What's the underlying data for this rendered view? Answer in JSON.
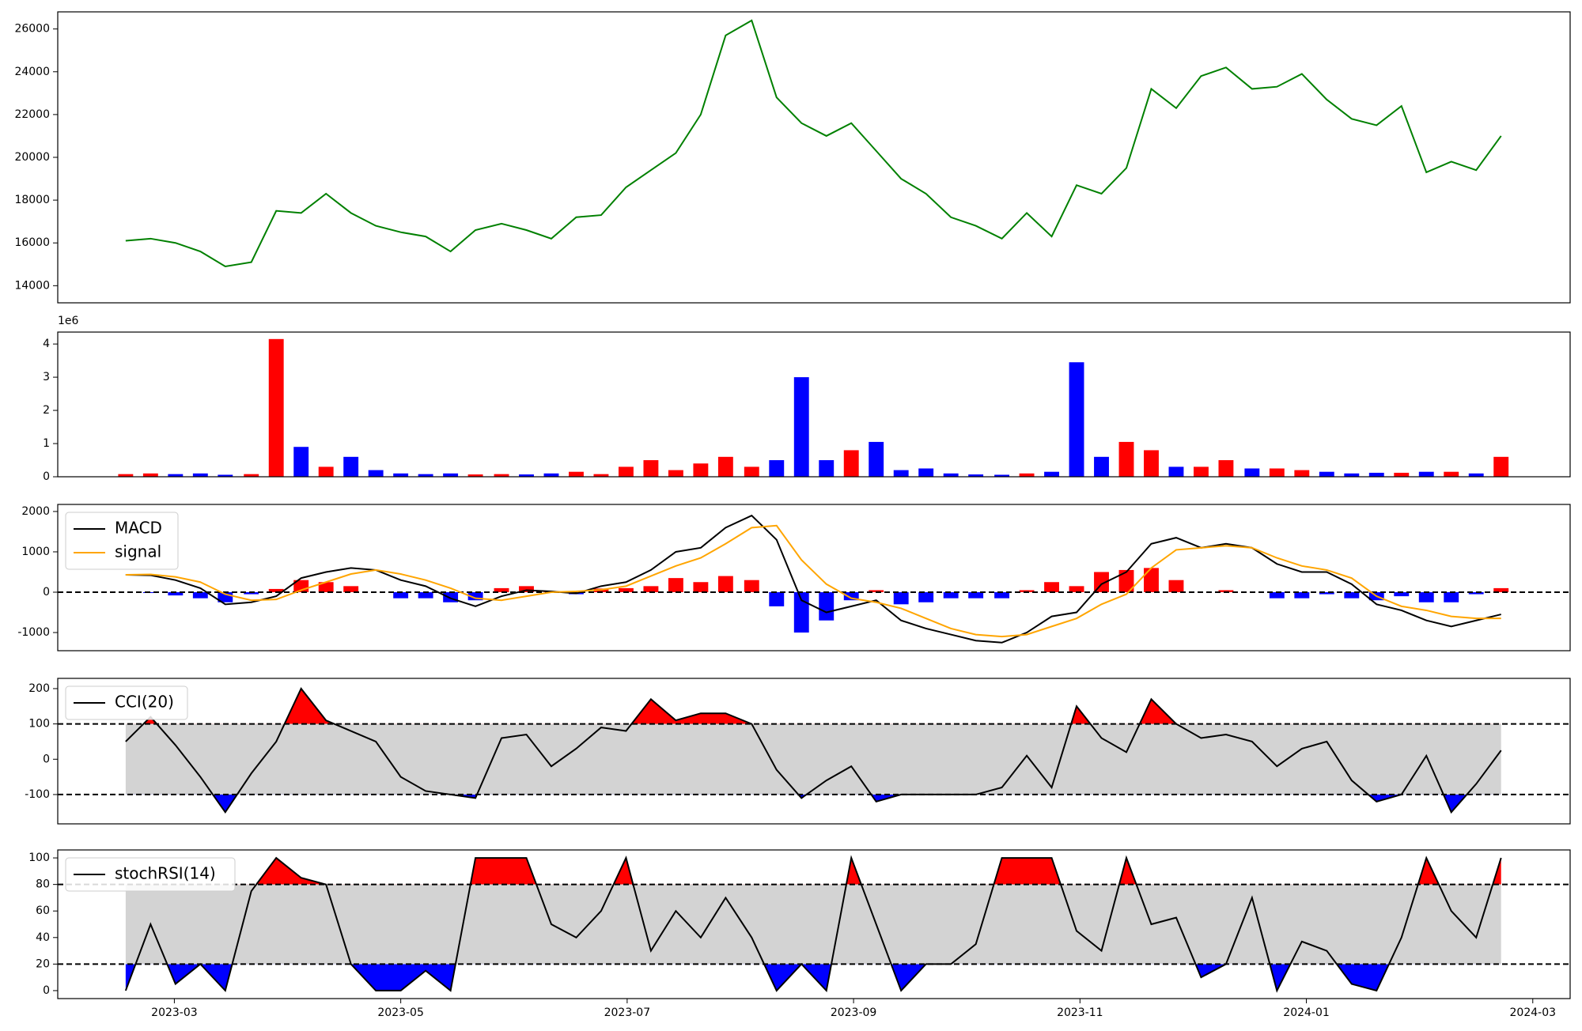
{
  "chart_data": [
    {
      "type": "line",
      "x": [
        2.57,
        2.79,
        3.01,
        3.23,
        3.45,
        3.68,
        3.9,
        4.12,
        4.34,
        4.56,
        4.78,
        5.0,
        5.22,
        5.44,
        5.66,
        5.89,
        6.11,
        6.33,
        6.55,
        6.77,
        6.99,
        7.21,
        7.43,
        7.65,
        7.87,
        8.1,
        8.32,
        8.54,
        8.76,
        8.98,
        9.2,
        9.42,
        9.64,
        9.86,
        10.08,
        10.31,
        10.53,
        10.75,
        10.97,
        11.19,
        11.41,
        11.63,
        11.85,
        12.07,
        12.29,
        12.52,
        12.74,
        12.96,
        13.18,
        13.4,
        13.62,
        13.84,
        14.06,
        14.28,
        14.5,
        14.72
      ],
      "xlim": [
        1.97,
        15.33
      ],
      "ylim": [
        13200,
        26800
      ],
      "yticks": [
        14000,
        16000,
        18000,
        20000,
        22000,
        24000,
        26000
      ],
      "series": [
        {
          "color": "green",
          "values": [
            16100,
            16200,
            16000,
            15600,
            14900,
            15100,
            17500,
            17400,
            18300,
            17400,
            16800,
            16500,
            16300,
            15600,
            16600,
            16900,
            16600,
            16200,
            17200,
            17300,
            18600,
            19400,
            20200,
            22000,
            25700,
            26400,
            22800,
            21600,
            21000,
            21600,
            20300,
            19000,
            18300,
            17200,
            16800,
            16200,
            17400,
            16300,
            18700,
            18300,
            19500,
            23200,
            22300,
            23800,
            24200,
            23200,
            23300,
            23900,
            22700,
            21800,
            21500,
            22400,
            19300,
            19800,
            19400,
            21000
          ]
        }
      ]
    },
    {
      "type": "bar",
      "x": [
        2.57,
        2.79,
        3.01,
        3.23,
        3.45,
        3.68,
        3.9,
        4.12,
        4.34,
        4.56,
        4.78,
        5.0,
        5.22,
        5.44,
        5.66,
        5.89,
        6.11,
        6.33,
        6.55,
        6.77,
        6.99,
        7.21,
        7.43,
        7.65,
        7.87,
        8.1,
        8.32,
        8.54,
        8.76,
        8.98,
        9.2,
        9.42,
        9.64,
        9.86,
        10.08,
        10.31,
        10.53,
        10.75,
        10.97,
        11.19,
        11.41,
        11.63,
        11.85,
        12.07,
        12.29,
        12.52,
        12.74,
        12.96,
        13.18,
        13.4,
        13.62,
        13.84,
        14.06,
        14.28,
        14.5,
        14.72
      ],
      "xlim": [
        1.97,
        15.33
      ],
      "ylim": [
        0,
        4360000
      ],
      "yticks": [
        0,
        {
          "value": 1000000,
          "label": "1"
        },
        {
          "value": 2000000,
          "label": "2"
        },
        {
          "value": 3000000,
          "label": "3"
        },
        {
          "value": 4000000,
          "label": "4"
        }
      ],
      "offset_label": "1e6",
      "values": [
        80000,
        100000,
        80000,
        100000,
        60000,
        80000,
        4150000,
        900000,
        300000,
        600000,
        200000,
        100000,
        80000,
        100000,
        70000,
        80000,
        70000,
        100000,
        150000,
        80000,
        300000,
        500000,
        200000,
        400000,
        600000,
        300000,
        500000,
        3000000,
        500000,
        800000,
        1050000,
        200000,
        250000,
        100000,
        70000,
        60000,
        100000,
        150000,
        3450000,
        600000,
        1050000,
        800000,
        300000,
        300000,
        500000,
        250000,
        250000,
        200000,
        150000,
        100000,
        120000,
        120000,
        150000,
        150000,
        100000,
        600000
      ],
      "colors": [
        "red",
        "red",
        "blue",
        "blue",
        "blue",
        "red",
        "red",
        "blue",
        "red",
        "blue",
        "blue",
        "blue",
        "blue",
        "blue",
        "red",
        "red",
        "blue",
        "blue",
        "red",
        "red",
        "red",
        "red",
        "red",
        "red",
        "red",
        "red",
        "blue",
        "blue",
        "blue",
        "red",
        "blue",
        "blue",
        "blue",
        "blue",
        "blue",
        "blue",
        "red",
        "blue",
        "blue",
        "blue",
        "red",
        "red",
        "blue",
        "red",
        "red",
        "blue",
        "red",
        "red",
        "blue",
        "blue",
        "blue",
        "red",
        "blue",
        "red",
        "blue",
        "red"
      ]
    },
    {
      "type": "line",
      "x": [
        2.57,
        2.79,
        3.01,
        3.23,
        3.45,
        3.68,
        3.9,
        4.12,
        4.34,
        4.56,
        4.78,
        5.0,
        5.22,
        5.44,
        5.66,
        5.89,
        6.11,
        6.33,
        6.55,
        6.77,
        6.99,
        7.21,
        7.43,
        7.65,
        7.87,
        8.1,
        8.32,
        8.54,
        8.76,
        8.98,
        9.2,
        9.42,
        9.64,
        9.86,
        10.08,
        10.31,
        10.53,
        10.75,
        10.97,
        11.19,
        11.41,
        11.63,
        11.85,
        12.07,
        12.29,
        12.52,
        12.74,
        12.96,
        13.18,
        13.4,
        13.62,
        13.84,
        14.06,
        14.28,
        14.5,
        14.72
      ],
      "xlim": [
        1.97,
        15.33
      ],
      "ylim": [
        -1450,
        2175
      ],
      "yticks": [
        -1000,
        0,
        1000,
        2000
      ],
      "hlines": [
        0
      ],
      "legend": "upper left",
      "series": [
        {
          "name": "MACD",
          "color": "black",
          "values": [
            430,
            420,
            300,
            100,
            -300,
            -250,
            -100,
            350,
            500,
            600,
            550,
            300,
            150,
            -150,
            -350,
            -100,
            50,
            20,
            -30,
            150,
            250,
            550,
            1000,
            1100,
            1600,
            1900,
            1300,
            -200,
            -500,
            -350,
            -200,
            -700,
            -900,
            -1050,
            -1200,
            -1250,
            -1000,
            -600,
            -500,
            200,
            500,
            1200,
            1350,
            1100,
            1200,
            1100,
            700,
            500,
            500,
            200,
            -300,
            -450,
            -700,
            -850,
            -700,
            -550
          ]
        },
        {
          "name": "signal",
          "color": "orange",
          "values": [
            430,
            440,
            380,
            250,
            -50,
            -200,
            -180,
            50,
            250,
            450,
            550,
            450,
            300,
            100,
            -150,
            -200,
            -100,
            0,
            20,
            60,
            150,
            400,
            650,
            850,
            1200,
            1600,
            1650,
            800,
            200,
            -150,
            -250,
            -400,
            -650,
            -900,
            -1050,
            -1100,
            -1050,
            -850,
            -650,
            -300,
            -50,
            600,
            1050,
            1100,
            1150,
            1100,
            850,
            650,
            550,
            350,
            -100,
            -350,
            -450,
            -600,
            -650,
            -650
          ]
        }
      ],
      "histogram": {
        "up_color": "red",
        "down_color": "blue",
        "values": [
          0,
          -20,
          -80,
          -150,
          -250,
          -50,
          80,
          300,
          250,
          150,
          0,
          -150,
          -150,
          -250,
          -200,
          100,
          150,
          20,
          -50,
          90,
          100,
          150,
          350,
          250,
          400,
          300,
          -350,
          -1000,
          -700,
          -200,
          50,
          -300,
          -250,
          -150,
          -150,
          -150,
          50,
          250,
          150,
          500,
          550,
          600,
          300,
          0,
          50,
          0,
          -150,
          -150,
          -50,
          -150,
          -200,
          -100,
          -250,
          -250,
          -50,
          100
        ]
      }
    },
    {
      "type": "line",
      "x": [
        2.57,
        2.79,
        3.01,
        3.23,
        3.45,
        3.68,
        3.9,
        4.12,
        4.34,
        4.56,
        4.78,
        5.0,
        5.22,
        5.44,
        5.66,
        5.89,
        6.11,
        6.33,
        6.55,
        6.77,
        6.99,
        7.21,
        7.43,
        7.65,
        7.87,
        8.1,
        8.32,
        8.54,
        8.76,
        8.98,
        9.2,
        9.42,
        9.64,
        9.86,
        10.08,
        10.31,
        10.53,
        10.75,
        10.97,
        11.19,
        11.41,
        11.63,
        11.85,
        12.07,
        12.29,
        12.52,
        12.74,
        12.96,
        13.18,
        13.4,
        13.62,
        13.84,
        14.06,
        14.28,
        14.5,
        14.72
      ],
      "xlim": [
        1.97,
        15.33
      ],
      "ylim": [
        -183,
        229
      ],
      "yticks": [
        -100,
        0,
        100,
        200
      ],
      "hlines": [
        -100,
        100
      ],
      "band_color": "lightgray",
      "fill_colors": {
        "above": "red",
        "below": "blue"
      },
      "legend": "upper left",
      "series": [
        {
          "name": "CCI(20)",
          "color": "black",
          "values": [
            50,
            120,
            40,
            -50,
            -150,
            -40,
            50,
            200,
            110,
            80,
            50,
            -50,
            -90,
            -100,
            -110,
            60,
            70,
            -20,
            30,
            90,
            80,
            170,
            110,
            130,
            130,
            100,
            -30,
            -110,
            -60,
            -20,
            -120,
            -100,
            -100,
            -100,
            -100,
            -80,
            10,
            -80,
            150,
            60,
            20,
            170,
            100,
            60,
            70,
            50,
            -20,
            30,
            50,
            -60,
            -120,
            -100,
            10,
            -150,
            -70,
            25
          ]
        }
      ]
    },
    {
      "type": "line",
      "x": [
        2.57,
        2.79,
        3.01,
        3.23,
        3.45,
        3.68,
        3.9,
        4.12,
        4.34,
        4.56,
        4.78,
        5.0,
        5.22,
        5.44,
        5.66,
        5.89,
        6.11,
        6.33,
        6.55,
        6.77,
        6.99,
        7.21,
        7.43,
        7.65,
        7.87,
        8.1,
        8.32,
        8.54,
        8.76,
        8.98,
        9.2,
        9.42,
        9.64,
        9.86,
        10.08,
        10.31,
        10.53,
        10.75,
        10.97,
        11.19,
        11.41,
        11.63,
        11.85,
        12.07,
        12.29,
        12.52,
        12.74,
        12.96,
        13.18,
        13.4,
        13.62,
        13.84,
        14.06,
        14.28,
        14.5,
        14.72
      ],
      "xlim": [
        1.97,
        15.33
      ],
      "xticks": [
        {
          "value": 3,
          "label": "2023-03"
        },
        {
          "value": 5,
          "label": "2023-05"
        },
        {
          "value": 7,
          "label": "2023-07"
        },
        {
          "value": 9,
          "label": "2023-09"
        },
        {
          "value": 11,
          "label": "2023-11"
        },
        {
          "value": 13,
          "label": "2024-01"
        },
        {
          "value": 15,
          "label": "2024-03"
        }
      ],
      "ylim": [
        -6,
        106
      ],
      "yticks": [
        0,
        20,
        40,
        60,
        80,
        100
      ],
      "hlines": [
        20,
        80
      ],
      "band_color": "lightgray",
      "fill_colors": {
        "above": "red",
        "below": "blue"
      },
      "legend": "upper left",
      "series": [
        {
          "name": "stochRSI(14)",
          "color": "black",
          "values": [
            0,
            50,
            5,
            20,
            0,
            75,
            100,
            85,
            80,
            20,
            0,
            0,
            15,
            0,
            100,
            100,
            100,
            50,
            40,
            60,
            100,
            30,
            60,
            40,
            70,
            40,
            0,
            20,
            0,
            100,
            50,
            0,
            20,
            20,
            35,
            100,
            100,
            100,
            45,
            30,
            100,
            50,
            55,
            10,
            20,
            70,
            0,
            37,
            30,
            5,
            0,
            40,
            100,
            60,
            40,
            100
          ]
        }
      ]
    }
  ]
}
